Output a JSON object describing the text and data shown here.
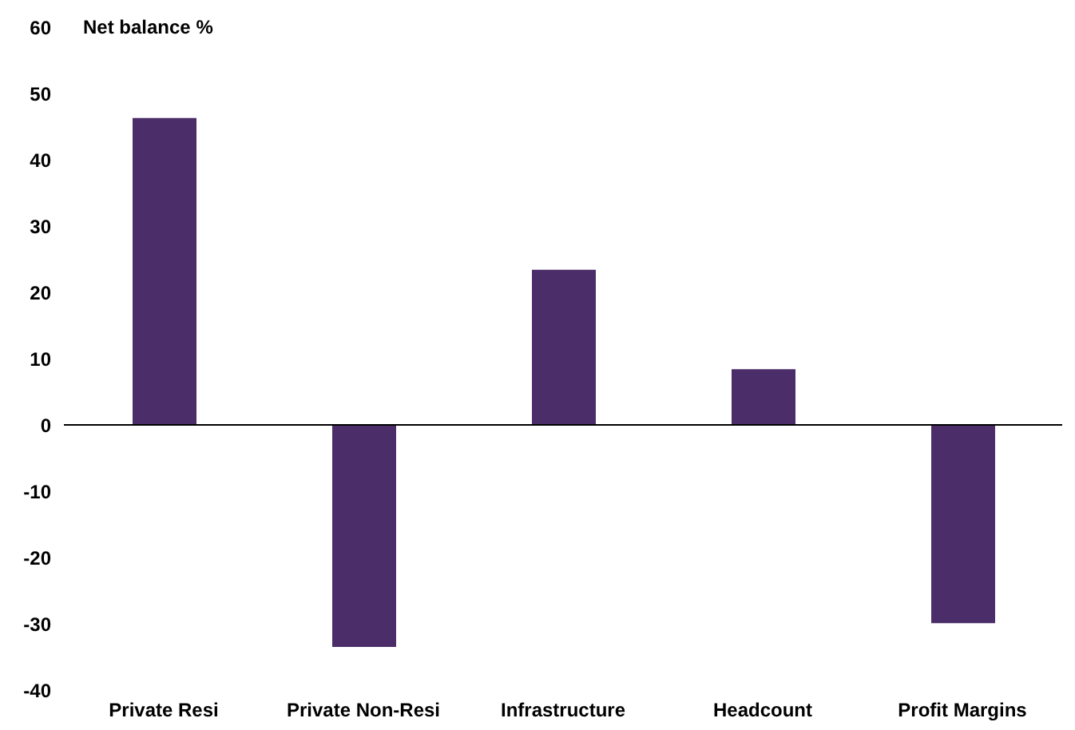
{
  "chart_data": {
    "type": "bar",
    "ylabel": "Net balance %",
    "categories": [
      "Private Resi",
      "Private Non-Resi",
      "Infrastructure",
      "Headcount",
      "Profit Margins"
    ],
    "values": [
      46.3,
      -33.5,
      23.4,
      8.4,
      -29.9
    ],
    "color": "#4b2d69",
    "ylim": [
      -40,
      60
    ],
    "yticks": [
      -40,
      -30,
      -20,
      -10,
      0,
      10,
      20,
      30,
      40,
      50,
      60
    ],
    "grid": false,
    "ref_lines": [
      {
        "axis": "y",
        "value": 0,
        "color": "#000000"
      }
    ]
  }
}
